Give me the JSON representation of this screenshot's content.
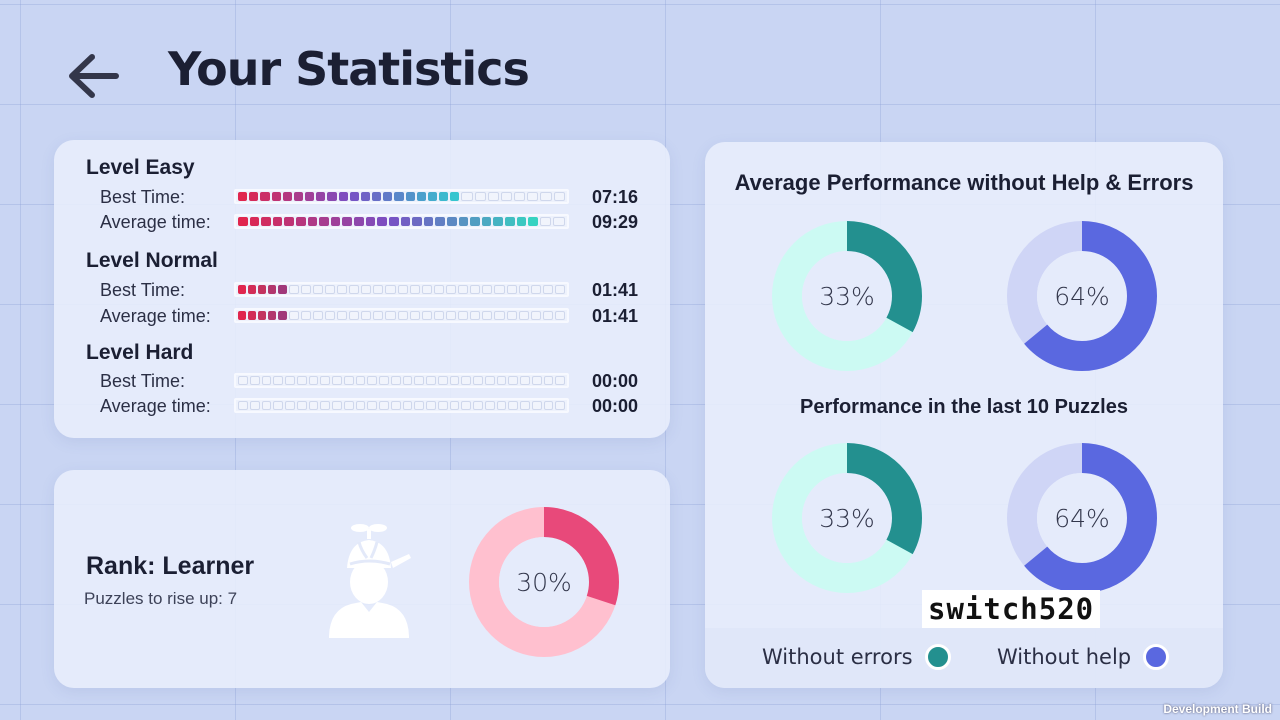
{
  "page": {
    "title": "Your Statistics"
  },
  "levels": [
    {
      "title": "Level Easy",
      "rows": [
        {
          "label": "Best Time:",
          "time": "07:16",
          "filled": 20,
          "color_from": "#e0264e",
          "color_mid": "#7a4fc4",
          "color_to": "#36c5cf"
        },
        {
          "label": "Average time:",
          "time": "09:29",
          "filled": 26,
          "color_from": "#e0264e",
          "color_mid": "#7a4fc4",
          "color_to": "#36d3c1"
        }
      ]
    },
    {
      "title": "Level Normal",
      "rows": [
        {
          "label": "Best Time:",
          "time": "01:41",
          "filled": 5,
          "color_from": "#e0264e",
          "color_mid": "#c3335f",
          "color_to": "#a1387a"
        },
        {
          "label": "Average time:",
          "time": "01:41",
          "filled": 5,
          "color_from": "#e0264e",
          "color_mid": "#c3335f",
          "color_to": "#a1387a"
        }
      ]
    },
    {
      "title": "Level Hard",
      "rows": [
        {
          "label": "Best Time:",
          "time": "00:00",
          "filled": 0,
          "color_from": "#e0264e",
          "color_mid": "#7a4fc4",
          "color_to": "#36c5cf"
        },
        {
          "label": "Average time:",
          "time": "00:00",
          "filled": 0,
          "color_from": "#e0264e",
          "color_mid": "#7a4fc4",
          "color_to": "#36c5cf"
        }
      ]
    }
  ],
  "bar_segments_total": 28,
  "rank": {
    "title": "Rank: Learner",
    "subtitle": "Puzzles to rise up: 7",
    "progress_label": "30%",
    "progress": 0.3,
    "ring_color": "#e8497a",
    "ring_track": "#ffc0cf",
    "icon": "beanie-avatar-icon"
  },
  "performance": {
    "section1_title": "Average Performance without Help & Errors",
    "section2_title": "Performance in the last 10 Puzzles",
    "section1": {
      "errors": {
        "label": "33%",
        "value": 0.33
      },
      "help": {
        "label": "64%",
        "value": 0.64
      }
    },
    "section2": {
      "errors": {
        "label": "33%",
        "value": 0.33
      },
      "help": {
        "label": "64%",
        "value": 0.64
      }
    },
    "colors": {
      "errors_ring": "#23908f",
      "errors_track": "#ccfaf3",
      "help_ring": "#5a68e0",
      "help_track": "#cfd5f6"
    },
    "legend": {
      "errors_label": "Without errors",
      "help_label": "Without help"
    }
  },
  "watermark": "switch520",
  "build_label": "Development Build"
}
